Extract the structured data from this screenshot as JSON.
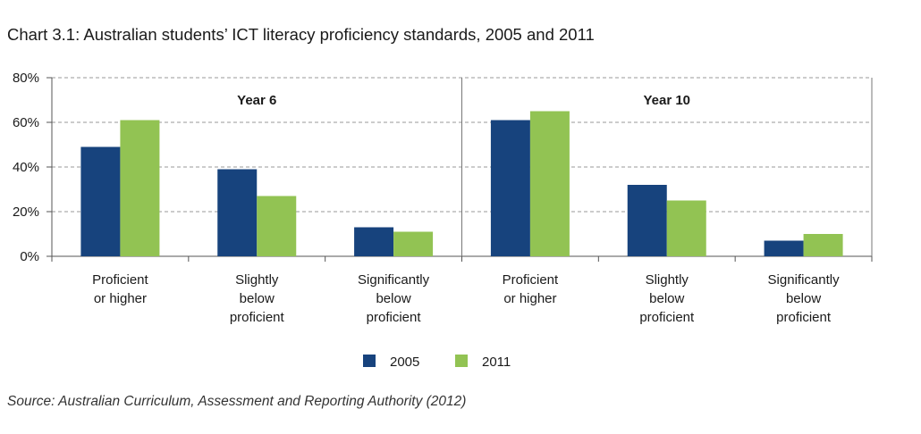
{
  "title": "Chart 3.1: Australian students’ ICT literacy proficiency standards, 2005 and 2011",
  "source": "Source: Australian Curriculum, Assessment and Reporting Authority (2012)",
  "colors": {
    "2005": "#17437d",
    "2011": "#92c353"
  },
  "chart_data": {
    "type": "bar",
    "title": "Chart 3.1: Australian students’ ICT literacy proficiency standards, 2005 and 2011",
    "xlabel": "",
    "ylabel": "",
    "ylim": [
      0,
      80
    ],
    "y_ticks": [
      "0%",
      "20%",
      "40%",
      "60%",
      "80%"
    ],
    "grid": true,
    "legend": "bottom",
    "panels": [
      {
        "name": "Year 6",
        "categories": [
          [
            "Proficient",
            "or higher"
          ],
          [
            "Slightly",
            "below",
            "proficient"
          ],
          [
            "Significantly",
            "below",
            "proficient"
          ]
        ],
        "series": [
          {
            "name": "2005",
            "values": [
              49,
              39,
              13
            ]
          },
          {
            "name": "2011",
            "values": [
              61,
              27,
              11
            ]
          }
        ]
      },
      {
        "name": "Year 10",
        "categories": [
          [
            "Proficient",
            "or higher"
          ],
          [
            "Slightly",
            "below",
            "proficient"
          ],
          [
            "Significantly",
            "below",
            "proficient"
          ]
        ],
        "series": [
          {
            "name": "2005",
            "values": [
              61,
              32,
              7
            ]
          },
          {
            "name": "2011",
            "values": [
              65,
              25,
              10
            ]
          }
        ]
      }
    ]
  }
}
